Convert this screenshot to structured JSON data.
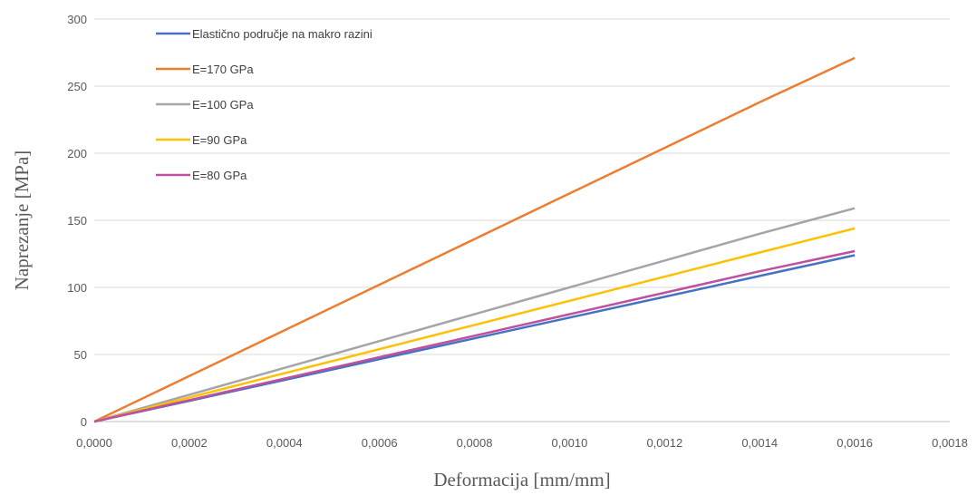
{
  "chart_data": {
    "type": "line",
    "title": "",
    "xlabel": "Deformacija [mm/mm]",
    "ylabel": "Naprezanje [MPa]",
    "xlim": [
      0,
      0.0018
    ],
    "ylim": [
      0,
      300
    ],
    "x_ticks": [
      "0,0000",
      "0,0002",
      "0,0004",
      "0,0006",
      "0,0008",
      "0,0010",
      "0,0012",
      "0,0014",
      "0,0016",
      "0,0018"
    ],
    "x_tick_values": [
      0,
      0.0002,
      0.0004,
      0.0006,
      0.0008,
      0.001,
      0.0012,
      0.0014,
      0.0016,
      0.0018
    ],
    "y_ticks": [
      "0",
      "50",
      "100",
      "150",
      "200",
      "250",
      "300"
    ],
    "y_tick_values": [
      0,
      50,
      100,
      150,
      200,
      250,
      300
    ],
    "grid": "horizontal",
    "legend_position": "top-left",
    "x": [
      0,
      0.0002,
      0.0004,
      0.0006,
      0.0008,
      0.001,
      0.0012,
      0.0014,
      0.0016
    ],
    "series": [
      {
        "name": "Elastično područje na makro razini",
        "color": "#4472c4",
        "values": [
          0,
          15.5,
          31,
          46.5,
          62,
          77.5,
          93,
          108.5,
          124
        ]
      },
      {
        "name": "E=170 GPa",
        "color": "#ed7d31",
        "values": [
          0,
          34,
          68,
          102,
          136,
          170,
          204,
          238,
          271
        ]
      },
      {
        "name": "E=100 GPa",
        "color": "#a5a5a5",
        "values": [
          0,
          20,
          40,
          60,
          80,
          100,
          120,
          140,
          159
        ]
      },
      {
        "name": "E=90 GPa",
        "color": "#ffc000",
        "values": [
          0,
          18,
          36,
          54,
          72,
          90,
          108,
          126,
          144
        ]
      },
      {
        "name": "E=80 GPa",
        "color": "#c0509d",
        "values": [
          0,
          16,
          32,
          48,
          64,
          80,
          96,
          112,
          127
        ]
      }
    ]
  }
}
